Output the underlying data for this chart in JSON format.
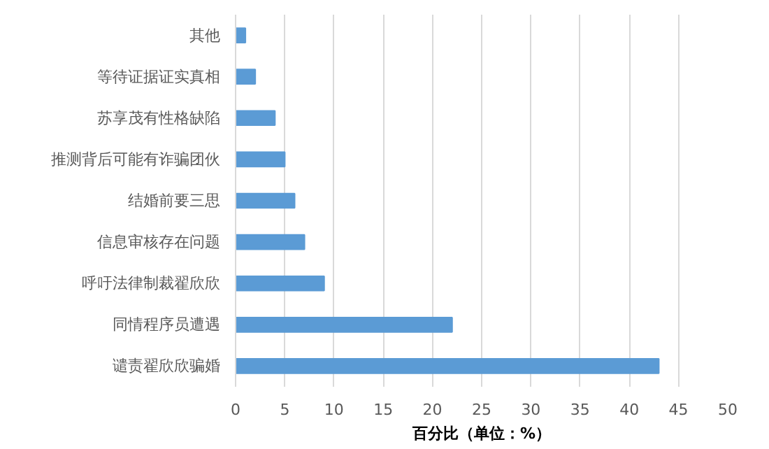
{
  "chart_data": {
    "type": "bar",
    "orientation": "horizontal",
    "xlabel": "百分比（单位：%）",
    "categories": [
      "其他",
      "等待证据证实真相",
      "苏享茂有性格缺陷",
      "推测背后可能有诈骗团伙",
      "结婚前要三思",
      "信息审核存在问题",
      "呼吁法律制裁翟欣欣",
      "同情程序员遭遇",
      "谴责翟欣欣骗婚"
    ],
    "values": [
      1,
      2,
      4,
      5,
      6,
      7,
      9,
      22,
      43
    ],
    "color": "#5b9bd5",
    "xlim": [
      0,
      50
    ],
    "xticks": [
      0,
      5,
      10,
      15,
      20,
      25,
      30,
      35,
      40,
      45,
      50
    ],
    "grid": "x"
  }
}
